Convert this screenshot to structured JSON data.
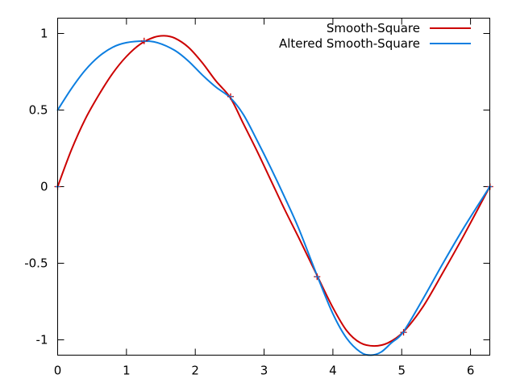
{
  "chart_data": {
    "type": "line",
    "title": "",
    "xlabel": "",
    "ylabel": "",
    "xlim": [
      0,
      6.28
    ],
    "ylim": [
      -1.1,
      1.1
    ],
    "xticks": [
      0,
      1,
      2,
      3,
      4,
      5,
      6
    ],
    "yticks": [
      -1,
      -0.5,
      0,
      0.5,
      1
    ],
    "xtick_labels": [
      "0",
      "1",
      "2",
      "3",
      "4",
      "5",
      "6"
    ],
    "ytick_labels": [
      "-1",
      "-0.5",
      "0",
      "0.5",
      "1"
    ],
    "grid": false,
    "legend_position": "top-right",
    "series": [
      {
        "name": "Smooth-Square",
        "color": "#cc0000",
        "x": [
          0,
          0.2,
          0.4,
          0.6,
          0.8,
          1.0,
          1.2,
          1.4,
          1.55,
          1.7,
          1.9,
          2.1,
          2.3,
          2.51,
          2.7,
          2.9,
          3.1,
          3.3,
          3.5,
          3.77,
          4.0,
          4.2,
          4.4,
          4.6,
          4.8,
          5.02,
          5.3,
          5.6,
          5.9,
          6.28
        ],
        "y": [
          0,
          0.24,
          0.44,
          0.6,
          0.74,
          0.85,
          0.93,
          0.975,
          0.985,
          0.97,
          0.91,
          0.81,
          0.69,
          0.58,
          0.41,
          0.23,
          0.04,
          -0.15,
          -0.33,
          -0.58,
          -0.79,
          -0.94,
          -1.02,
          -1.04,
          -1.02,
          -0.95,
          -0.79,
          -0.56,
          -0.32,
          0
        ]
      },
      {
        "name": "Altered Smooth-Square",
        "color": "#0c7ee0",
        "x": [
          0,
          0.2,
          0.4,
          0.6,
          0.8,
          1.0,
          1.25,
          1.45,
          1.7,
          1.9,
          2.1,
          2.3,
          2.51,
          2.7,
          2.9,
          3.1,
          3.3,
          3.5,
          3.77,
          4.0,
          4.2,
          4.4,
          4.55,
          4.7,
          4.85,
          5.02,
          5.3,
          5.6,
          5.9,
          6.28
        ],
        "y": [
          0.5,
          0.64,
          0.76,
          0.85,
          0.91,
          0.94,
          0.95,
          0.94,
          0.89,
          0.82,
          0.73,
          0.65,
          0.58,
          0.47,
          0.3,
          0.12,
          -0.07,
          -0.27,
          -0.58,
          -0.83,
          -0.99,
          -1.08,
          -1.1,
          -1.08,
          -1.02,
          -0.95,
          -0.74,
          -0.5,
          -0.27,
          0
        ]
      }
    ],
    "sample_points": {
      "x": [
        0,
        1.257,
        2.513,
        3.77,
        5.027,
        6.283
      ],
      "y": [
        0,
        0.951,
        0.588,
        -0.588,
        -0.951,
        0
      ],
      "colors": [
        "#cc0000",
        "#0c7ee0"
      ]
    }
  }
}
